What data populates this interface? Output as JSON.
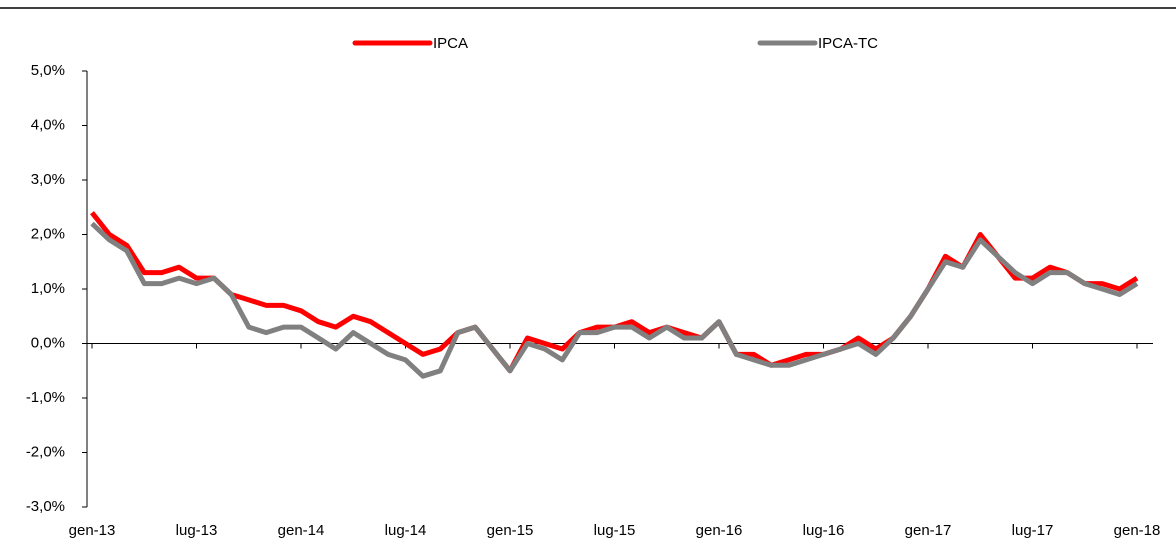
{
  "chart_data": {
    "type": "line",
    "categories": [
      "gen-13",
      null,
      null,
      null,
      null,
      null,
      "lug-13",
      null,
      null,
      null,
      null,
      null,
      "gen-14",
      null,
      null,
      null,
      null,
      null,
      "lug-14",
      null,
      null,
      null,
      null,
      null,
      "gen-15",
      null,
      null,
      null,
      null,
      null,
      "lug-15",
      null,
      null,
      null,
      null,
      null,
      "gen-16",
      null,
      null,
      null,
      null,
      null,
      "lug-16",
      null,
      null,
      null,
      null,
      null,
      "gen-17",
      null,
      null,
      null,
      null,
      null,
      "lug-17",
      null,
      null,
      null,
      null,
      null,
      "gen-18"
    ],
    "series": [
      {
        "name": "IPCA",
        "color": "#ff0000",
        "values": [
          2.4,
          2.0,
          1.8,
          1.3,
          1.3,
          1.4,
          1.2,
          1.2,
          0.9,
          0.8,
          0.7,
          0.7,
          0.6,
          0.4,
          0.3,
          0.5,
          0.4,
          0.2,
          0.0,
          -0.2,
          -0.1,
          0.2,
          0.3,
          -0.1,
          -0.5,
          0.1,
          0.0,
          -0.1,
          0.2,
          0.3,
          0.3,
          0.4,
          0.2,
          0.3,
          0.2,
          0.1,
          0.4,
          -0.2,
          -0.2,
          -0.4,
          -0.3,
          -0.2,
          -0.2,
          -0.1,
          0.1,
          -0.1,
          0.1,
          0.5,
          1.0,
          1.6,
          1.4,
          2.0,
          1.6,
          1.2,
          1.2,
          1.4,
          1.3,
          1.1,
          1.1,
          1.0,
          1.2
        ]
      },
      {
        "name": "IPCA-TC",
        "color": "#808080",
        "values": [
          2.2,
          1.9,
          1.7,
          1.1,
          1.1,
          1.2,
          1.1,
          1.2,
          0.9,
          0.3,
          0.2,
          0.3,
          0.3,
          0.1,
          -0.1,
          0.2,
          0.0,
          -0.2,
          -0.3,
          -0.6,
          -0.5,
          0.2,
          0.3,
          -0.1,
          -0.5,
          0.0,
          -0.1,
          -0.3,
          0.2,
          0.2,
          0.3,
          0.3,
          0.1,
          0.3,
          0.1,
          0.1,
          0.4,
          -0.2,
          -0.3,
          -0.4,
          -0.4,
          -0.3,
          -0.2,
          -0.1,
          0.0,
          -0.2,
          0.1,
          0.5,
          1.0,
          1.5,
          1.4,
          1.9,
          1.6,
          1.3,
          1.1,
          1.3,
          1.3,
          1.1,
          1.0,
          0.9,
          1.1
        ]
      }
    ],
    "ylim": [
      -3,
      5
    ],
    "yticks": [
      {
        "value": 5,
        "label": "5,0%"
      },
      {
        "value": 4,
        "label": "4,0%"
      },
      {
        "value": 3,
        "label": "3,0%"
      },
      {
        "value": 2,
        "label": "2,0%"
      },
      {
        "value": 1,
        "label": "1,0%"
      },
      {
        "value": 0,
        "label": "0,0%"
      },
      {
        "value": -1,
        "label": "-1,0%"
      },
      {
        "value": -2,
        "label": "-2,0%"
      },
      {
        "value": -3,
        "label": "-3,0%"
      }
    ],
    "grid": false,
    "legend": "top"
  }
}
